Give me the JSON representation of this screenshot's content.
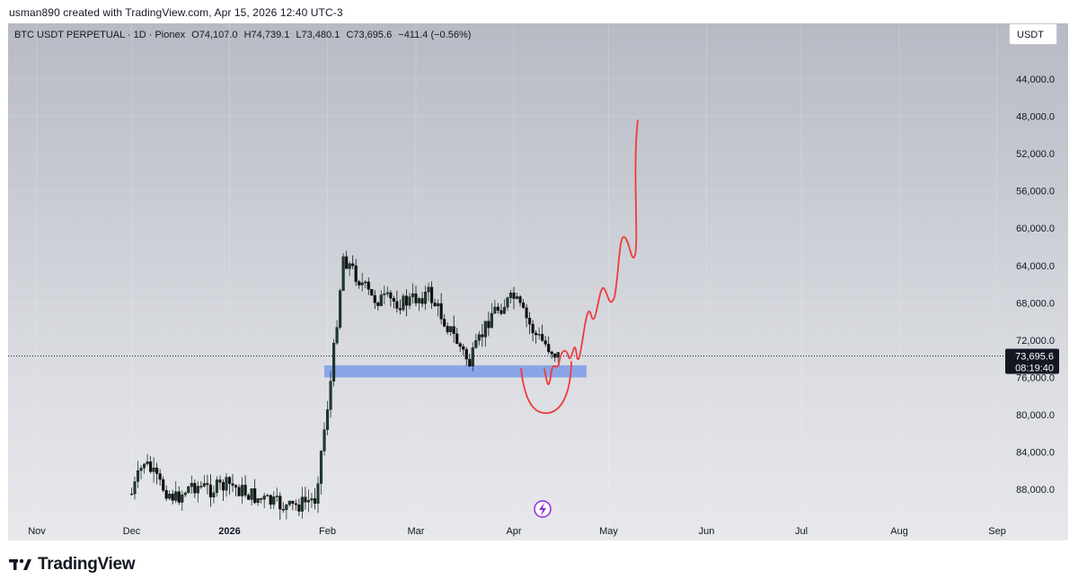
{
  "caption": "usman890 created with TradingView.com, Apr 15, 2026 12:40 UTC-3",
  "header": {
    "symbol": "BTC USDT PERPETUAL · 1D · Pionex",
    "open": "O74,107.0",
    "high": "H74,739.1",
    "low": "L73,480.1",
    "close": "C73,695.6",
    "change": "−411.4 (−0.56%)"
  },
  "currency_button": "USDT",
  "price_badge": {
    "price": "73,695.6",
    "countdown": "08:19:40"
  },
  "footer_brand": "TradingView",
  "colors": {
    "up": "#1e3a2f",
    "down": "#111111",
    "zone": "#7b9be8",
    "drawing": "#ef3b3b"
  },
  "chart_data": {
    "type": "candlestick",
    "y_axis": {
      "inverted": true,
      "range": [
        40000,
        92000
      ],
      "tick_values": [
        44000,
        48000,
        52000,
        56000,
        60000,
        64000,
        68000,
        72000,
        76000,
        80000,
        84000,
        88000
      ],
      "tick_labels": [
        "44,000.0",
        "48,000.0",
        "52,000.0",
        "56,000.0",
        "60,000.0",
        "64,000.0",
        "68,000.0",
        "72,000.0",
        "76,000.0",
        "80,000.0",
        "84,000.0",
        "88,000.0"
      ]
    },
    "x_axis": {
      "labels": [
        "Nov",
        "Dec",
        "2026",
        "Feb",
        "Mar",
        "Apr",
        "May",
        "Jun",
        "Jul",
        "Aug",
        "Sep"
      ]
    },
    "series": [
      {
        "date": "2025-12-01",
        "close": 88500
      },
      {
        "date": "2025-12-05",
        "close": 85000
      },
      {
        "date": "2025-12-10",
        "close": 87500
      },
      {
        "date": "2025-12-15",
        "close": 89000
      },
      {
        "date": "2025-12-20",
        "close": 87500
      },
      {
        "date": "2025-12-26",
        "close": 88000
      },
      {
        "date": "2026-01-01",
        "close": 87500
      },
      {
        "date": "2026-01-10",
        "close": 89000
      },
      {
        "date": "2026-01-20",
        "close": 90000
      },
      {
        "date": "2026-01-28",
        "close": 89000
      },
      {
        "date": "2026-02-02",
        "close": 76500
      },
      {
        "date": "2026-02-06",
        "close": 63000
      },
      {
        "date": "2026-02-15",
        "close": 67500
      },
      {
        "date": "2026-02-25",
        "close": 68000
      },
      {
        "date": "2026-03-05",
        "close": 67000
      },
      {
        "date": "2026-03-12",
        "close": 71000
      },
      {
        "date": "2026-03-18",
        "close": 74500
      },
      {
        "date": "2026-03-25",
        "close": 69000
      },
      {
        "date": "2026-04-01",
        "close": 67500
      },
      {
        "date": "2026-04-08",
        "close": 71500
      },
      {
        "date": "2026-04-15",
        "close": 73695.6
      }
    ],
    "zone": {
      "from_date": "2026-01-31",
      "to_date": "2026-04-24",
      "price_top": 74700,
      "price_bottom": 76000
    },
    "current_price": 73695.6
  }
}
